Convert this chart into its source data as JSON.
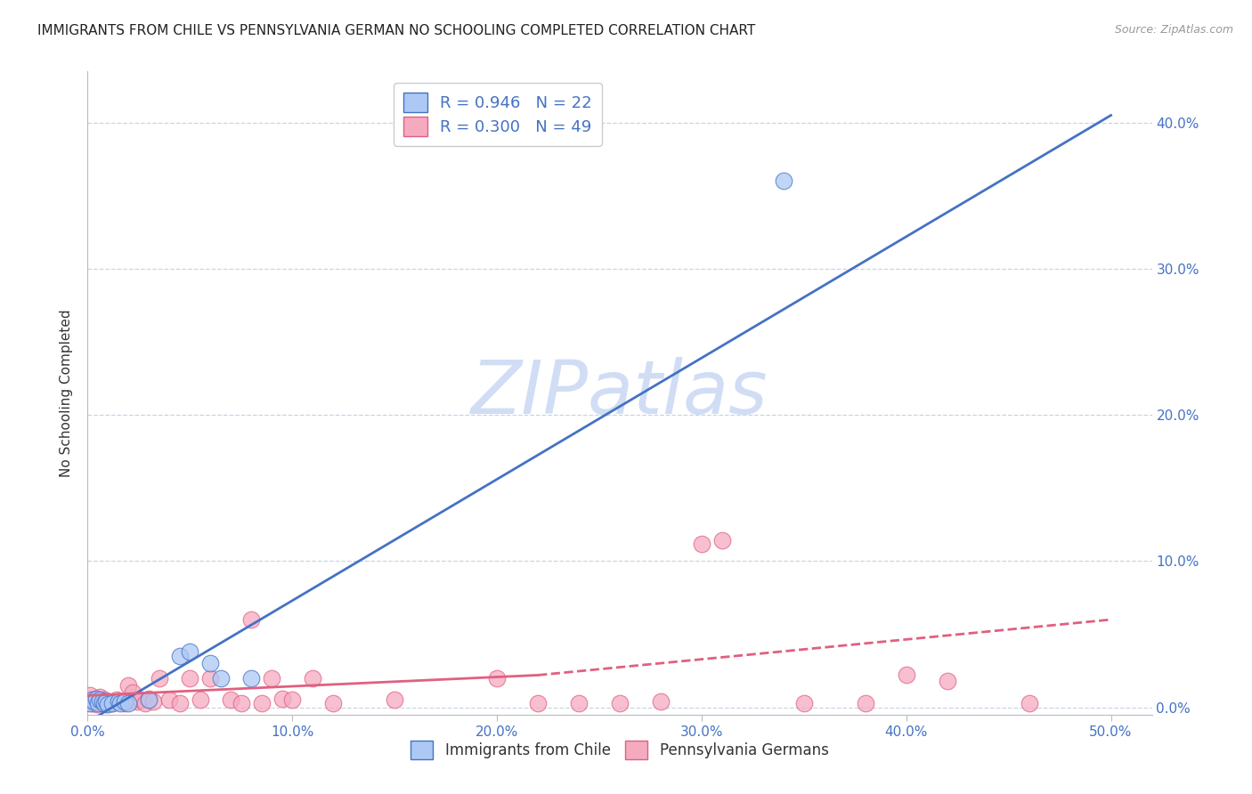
{
  "title": "IMMIGRANTS FROM CHILE VS PENNSYLVANIA GERMAN NO SCHOOLING COMPLETED CORRELATION CHART",
  "source": "Source: ZipAtlas.com",
  "ylabel": "No Schooling Completed",
  "xlim": [
    0.0,
    0.52
  ],
  "ylim": [
    -0.005,
    0.435
  ],
  "xticks": [
    0.0,
    0.1,
    0.2,
    0.3,
    0.4,
    0.5
  ],
  "yticks": [
    0.0,
    0.1,
    0.2,
    0.3,
    0.4
  ],
  "chile_R": 0.946,
  "chile_N": 22,
  "pagerman_R": 0.3,
  "pagerman_N": 49,
  "chile_color": "#adc8f5",
  "pagerman_color": "#f5aac0",
  "chile_line_color": "#4472c4",
  "pagerman_line_color": "#e06080",
  "watermark": "ZIPatlas",
  "watermark_color": "#d0ddf5",
  "legend_label_chile": "Immigrants from Chile",
  "legend_label_pagerman": "Pennsylvania Germans",
  "chile_points": [
    [
      0.001,
      0.003
    ],
    [
      0.002,
      0.005
    ],
    [
      0.003,
      0.004
    ],
    [
      0.004,
      0.006
    ],
    [
      0.005,
      0.003
    ],
    [
      0.006,
      0.005
    ],
    [
      0.007,
      0.004
    ],
    [
      0.008,
      0.003
    ],
    [
      0.009,
      0.004
    ],
    [
      0.01,
      0.002
    ],
    [
      0.012,
      0.003
    ],
    [
      0.015,
      0.004
    ],
    [
      0.016,
      0.003
    ],
    [
      0.018,
      0.004
    ],
    [
      0.02,
      0.003
    ],
    [
      0.03,
      0.005
    ],
    [
      0.045,
      0.035
    ],
    [
      0.05,
      0.038
    ],
    [
      0.06,
      0.03
    ],
    [
      0.065,
      0.02
    ],
    [
      0.08,
      0.02
    ],
    [
      0.34,
      0.36
    ]
  ],
  "pagerman_points": [
    [
      0.001,
      0.008
    ],
    [
      0.002,
      0.003
    ],
    [
      0.003,
      0.005
    ],
    [
      0.004,
      0.002
    ],
    [
      0.005,
      0.004
    ],
    [
      0.006,
      0.007
    ],
    [
      0.007,
      0.003
    ],
    [
      0.008,
      0.005
    ],
    [
      0.009,
      0.002
    ],
    [
      0.01,
      0.004
    ],
    [
      0.012,
      0.003
    ],
    [
      0.014,
      0.005
    ],
    [
      0.016,
      0.004
    ],
    [
      0.018,
      0.003
    ],
    [
      0.02,
      0.015
    ],
    [
      0.022,
      0.01
    ],
    [
      0.024,
      0.004
    ],
    [
      0.026,
      0.005
    ],
    [
      0.028,
      0.003
    ],
    [
      0.03,
      0.006
    ],
    [
      0.032,
      0.004
    ],
    [
      0.035,
      0.02
    ],
    [
      0.04,
      0.005
    ],
    [
      0.045,
      0.003
    ],
    [
      0.05,
      0.02
    ],
    [
      0.055,
      0.005
    ],
    [
      0.06,
      0.02
    ],
    [
      0.07,
      0.005
    ],
    [
      0.075,
      0.003
    ],
    [
      0.08,
      0.06
    ],
    [
      0.085,
      0.003
    ],
    [
      0.09,
      0.02
    ],
    [
      0.095,
      0.006
    ],
    [
      0.1,
      0.005
    ],
    [
      0.11,
      0.02
    ],
    [
      0.12,
      0.003
    ],
    [
      0.15,
      0.005
    ],
    [
      0.2,
      0.02
    ],
    [
      0.22,
      0.003
    ],
    [
      0.24,
      0.003
    ],
    [
      0.26,
      0.003
    ],
    [
      0.28,
      0.004
    ],
    [
      0.3,
      0.112
    ],
    [
      0.31,
      0.114
    ],
    [
      0.35,
      0.003
    ],
    [
      0.38,
      0.003
    ],
    [
      0.4,
      0.022
    ],
    [
      0.42,
      0.018
    ],
    [
      0.46,
      0.003
    ]
  ],
  "chile_line": [
    0.0,
    -0.01,
    0.5,
    0.405
  ],
  "pagerman_line_solid": [
    0.0,
    0.008,
    0.22,
    0.022
  ],
  "pagerman_line_dashed": [
    0.22,
    0.022,
    0.5,
    0.06
  ],
  "background_color": "#ffffff",
  "grid_color": "#c8d4e8",
  "title_fontsize": 11,
  "axis_label_color": "#4472c4",
  "tick_label_color": "#4472c4"
}
